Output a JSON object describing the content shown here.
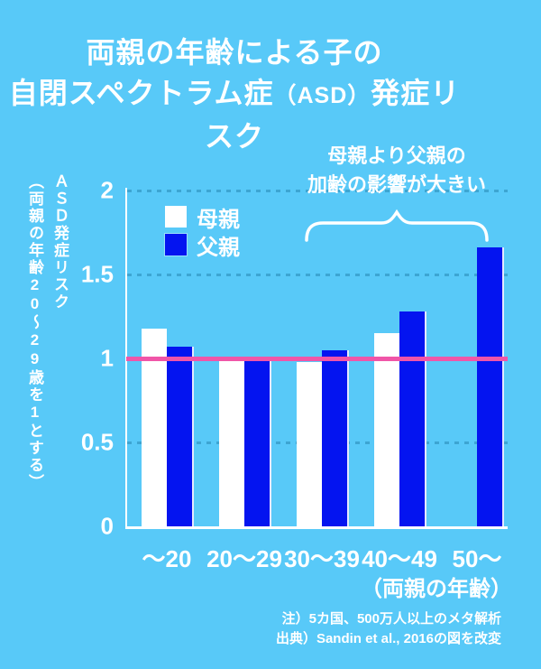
{
  "title": {
    "line1": "両親の年齢による子の",
    "line2_pre": "自閉スペクトラム症",
    "line2_small": "（ASD）",
    "line2_post": "発症リスク"
  },
  "y_axis": {
    "title_main": "ＡＳＤ発症リスク",
    "title_sub": "（両親の年齢20～29歳を1とする）"
  },
  "x_axis": {
    "unit_label": "（両親の年齢）"
  },
  "annotation": {
    "line1": "母親より父親の",
    "line2": "加齢の影響が大きい"
  },
  "footer": {
    "note": "注）5カ国、500万人以上のメタ解析",
    "source": "出典）Sandin et al., 2016の図を改変"
  },
  "colors": {
    "background": "#58c9f8",
    "bar_white": "#ffffff",
    "bar_blue": "#0414f0",
    "reference_pink": "#f055a8",
    "dotted_gridline": "#3da5d2",
    "text": "#ffffff"
  },
  "chart_data": {
    "type": "bar",
    "title": "両親の年齢による子の自閉スペクトラム症（ASD）発症リスク",
    "categories": [
      "～20",
      "20～29",
      "30～39",
      "40～49",
      "50～"
    ],
    "series": [
      {
        "name": "母親",
        "color": "#ffffff",
        "values": [
          1.18,
          1.0,
          0.98,
          1.15,
          null
        ]
      },
      {
        "name": "父親",
        "color": "#0414f0",
        "values": [
          1.07,
          1.0,
          1.05,
          1.28,
          1.66
        ]
      }
    ],
    "xlabel": "両親の年齢",
    "ylabel": "ＡＳＤ発症リスク（両親の年齢20～29歳を1とする）",
    "ylim": [
      0,
      2
    ],
    "yticks": [
      0,
      0.5,
      1,
      1.5,
      2
    ],
    "dotted_gridlines": [
      0.5,
      1.5,
      2
    ],
    "reference_line": {
      "value": 1.0,
      "color": "#f055a8"
    },
    "grid": "horizontal-dotted",
    "legend_position": "upper-left-inside",
    "annotation": "母親より父親の加齢の影響が大きい"
  }
}
